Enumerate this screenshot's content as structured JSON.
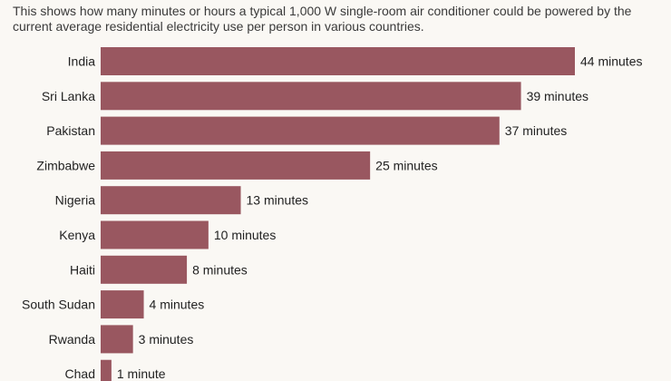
{
  "subtitle": "This shows how many minutes or hours a typical 1,000 W single-room air conditioner could be powered by the current average residential electricity use per person in various countries.",
  "colors": {
    "bar": "#995760",
    "background": "#faf8f4"
  },
  "chart_data": {
    "type": "bar",
    "orientation": "horizontal",
    "categories": [
      "India",
      "Sri Lanka",
      "Pakistan",
      "Zimbabwe",
      "Nigeria",
      "Kenya",
      "Haiti",
      "South Sudan",
      "Rwanda",
      "Chad"
    ],
    "values": [
      44,
      39,
      37,
      25,
      13,
      10,
      8,
      4,
      3,
      1
    ],
    "value_labels": [
      "44 minutes",
      "39 minutes",
      "37 minutes",
      "25 minutes",
      "13 minutes",
      "10 minutes",
      "8 minutes",
      "4 minutes",
      "3 minutes",
      "1 minute"
    ],
    "xlim": [
      0,
      44
    ],
    "grid": false,
    "legend": "none"
  }
}
